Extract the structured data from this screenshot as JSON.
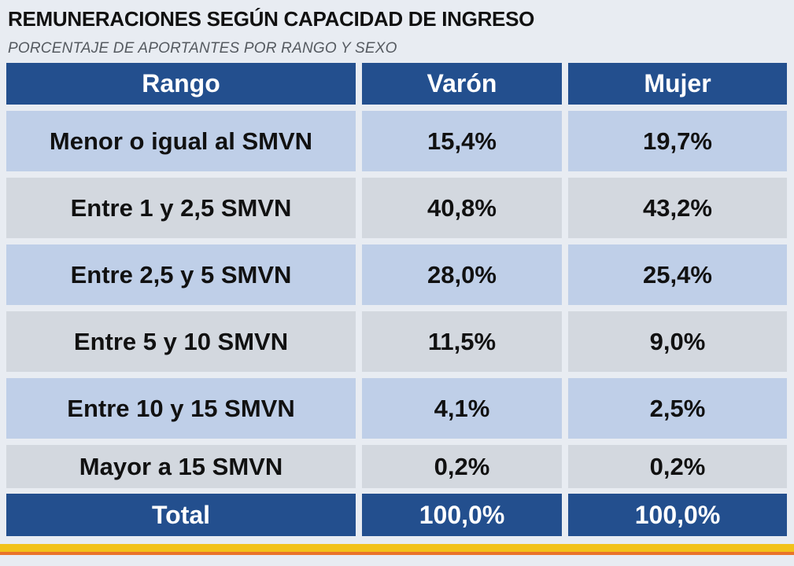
{
  "title": "REMUNERACIONES SEGÚN CAPACIDAD DE INGRESO",
  "subtitle": "PORCENTAJE DE APORTANTES POR RANGO Y SEXO",
  "colors": {
    "header_bg": "#234f8e",
    "row_light_blue": "#bfcfe8",
    "row_light_gray": "#d3d8df",
    "accent_yellow": "#f2c21a",
    "accent_orange": "#e9742a"
  },
  "chart_data": {
    "type": "table",
    "columns": [
      "Rango",
      "Varón",
      "Mujer"
    ],
    "rows": [
      [
        "Menor o igual al SMVN",
        "15,4%",
        "19,7%"
      ],
      [
        "Entre 1 y 2,5 SMVN",
        "40,8%",
        "43,2%"
      ],
      [
        "Entre 2,5 y 5 SMVN",
        "28,0%",
        "25,4%"
      ],
      [
        "Entre 5 y 10 SMVN",
        "11,5%",
        "9,0%"
      ],
      [
        "Entre 10 y 15 SMVN",
        "4,1%",
        "2,5%"
      ],
      [
        "Mayor a 15 SMVN",
        "0,2%",
        "0,2%"
      ]
    ],
    "total": [
      "Total",
      "100,0%",
      "100,0%"
    ],
    "series": [
      {
        "name": "Varón",
        "values": [
          15.4,
          40.8,
          28.0,
          11.5,
          4.1,
          0.2
        ]
      },
      {
        "name": "Mujer",
        "values": [
          19.7,
          43.2,
          25.4,
          9.0,
          2.5,
          0.2
        ]
      }
    ]
  }
}
